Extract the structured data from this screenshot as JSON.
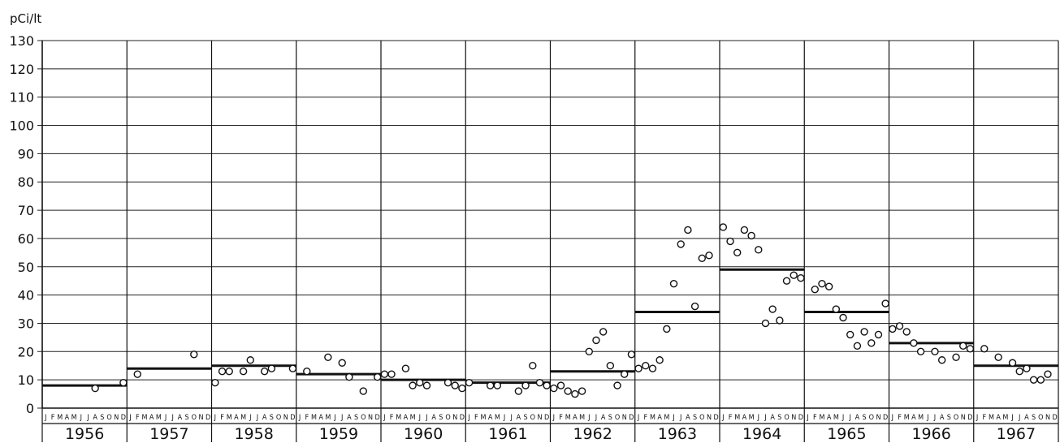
{
  "chart_data": {
    "type": "scatter",
    "title": "",
    "ylabel": "pCi/lt",
    "ylim": [
      0,
      130
    ],
    "yticks": [
      0,
      10,
      20,
      30,
      40,
      50,
      60,
      70,
      80,
      90,
      100,
      110,
      120,
      130
    ],
    "grid": true,
    "month_letters": [
      "J",
      "F",
      "M",
      "A",
      "M",
      "J",
      "J",
      "A",
      "S",
      "O",
      "N",
      "D"
    ],
    "years": [
      {
        "year": "1956",
        "annual_mean": 8,
        "monthly": [
          null,
          null,
          null,
          null,
          null,
          null,
          null,
          7,
          null,
          null,
          null,
          9
        ]
      },
      {
        "year": "1957",
        "annual_mean": 14,
        "monthly": [
          null,
          12,
          null,
          null,
          null,
          null,
          null,
          null,
          null,
          19,
          null,
          null
        ]
      },
      {
        "year": "1958",
        "annual_mean": 15,
        "monthly": [
          9,
          13,
          13,
          null,
          13,
          17,
          null,
          13,
          14,
          null,
          null,
          14
        ]
      },
      {
        "year": "1959",
        "annual_mean": 12,
        "monthly": [
          null,
          13,
          null,
          null,
          18,
          null,
          16,
          11,
          null,
          6,
          null,
          11
        ]
      },
      {
        "year": "1960",
        "annual_mean": 10,
        "monthly": [
          12,
          12,
          null,
          14,
          8,
          9,
          8,
          null,
          null,
          9,
          8,
          7
        ]
      },
      {
        "year": "1961",
        "annual_mean": 9,
        "monthly": [
          9,
          null,
          null,
          8,
          8,
          null,
          null,
          6,
          8,
          15,
          9,
          8
        ]
      },
      {
        "year": "1962",
        "annual_mean": 13,
        "monthly": [
          7,
          8,
          6,
          5,
          6,
          20,
          24,
          27,
          15,
          8,
          12,
          19
        ]
      },
      {
        "year": "1963",
        "annual_mean": 34,
        "monthly": [
          14,
          15,
          14,
          17,
          28,
          44,
          58,
          63,
          36,
          53,
          54,
          null
        ]
      },
      {
        "year": "1964",
        "annual_mean": 49,
        "monthly": [
          64,
          59,
          55,
          63,
          61,
          56,
          30,
          35,
          31,
          45,
          47,
          46
        ]
      },
      {
        "year": "1965",
        "annual_mean": 34,
        "monthly": [
          null,
          42,
          44,
          43,
          35,
          32,
          26,
          22,
          27,
          23,
          26,
          37
        ]
      },
      {
        "year": "1966",
        "annual_mean": 23,
        "monthly": [
          28,
          29,
          27,
          23,
          20,
          null,
          20,
          17,
          null,
          18,
          22,
          21
        ]
      },
      {
        "year": "1967",
        "annual_mean": 15,
        "monthly": [
          null,
          21,
          null,
          18,
          null,
          16,
          13,
          14,
          10,
          10,
          12,
          null
        ]
      }
    ]
  }
}
